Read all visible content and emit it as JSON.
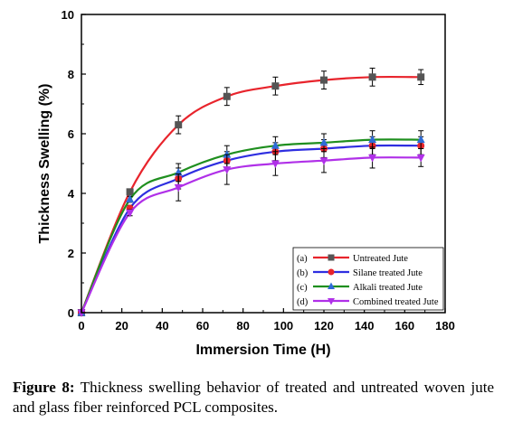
{
  "chart_data": {
    "type": "line",
    "xlabel": "Immersion Time (H)",
    "ylabel": "Thickness Swelling (%)",
    "xlim": [
      0,
      180
    ],
    "ylim": [
      0,
      10
    ],
    "xticks": [
      "0",
      "20",
      "40",
      "60",
      "80",
      "100",
      "120",
      "140",
      "160",
      "180"
    ],
    "yticks": [
      "0",
      "2",
      "4",
      "6",
      "8",
      "10"
    ],
    "grid": false,
    "legend_position": "bottom-right",
    "x": [
      0,
      24,
      48,
      72,
      96,
      120,
      144,
      168
    ],
    "series": [
      {
        "name": "Untreated Jute",
        "tag": "(a)",
        "color": "#e8242c",
        "marker": "square",
        "marker_color": "#555555",
        "values": [
          0,
          4.05,
          6.3,
          7.25,
          7.6,
          7.8,
          7.9,
          7.9
        ],
        "errors": [
          0,
          0.1,
          0.3,
          0.3,
          0.3,
          0.3,
          0.3,
          0.25
        ]
      },
      {
        "name": "Silane treated Jute",
        "tag": "(b)",
        "color": "#2e2ee0",
        "marker": "circle",
        "marker_color": "#e8242c",
        "values": [
          0,
          3.5,
          4.5,
          5.1,
          5.4,
          5.5,
          5.6,
          5.6
        ],
        "errors": [
          0,
          0.1,
          0.35,
          0.3,
          0.3,
          0.3,
          0.3,
          0.3
        ]
      },
      {
        "name": "Alkali treated Jute",
        "tag": "(c)",
        "color": "#1f8f1f",
        "marker": "triangle-up",
        "marker_color": "#2e6bd6",
        "values": [
          0,
          3.8,
          4.7,
          5.3,
          5.6,
          5.7,
          5.8,
          5.8
        ],
        "errors": [
          0,
          0.1,
          0.3,
          0.3,
          0.3,
          0.3,
          0.3,
          0.3
        ]
      },
      {
        "name": "Combined treated Jute",
        "tag": "(d)",
        "color": "#b030e8",
        "marker": "triangle-down",
        "marker_color": "#b030e8",
        "values": [
          0,
          3.35,
          4.2,
          4.8,
          5.0,
          5.1,
          5.2,
          5.2
        ],
        "errors": [
          0,
          0.1,
          0.45,
          0.5,
          0.4,
          0.4,
          0.35,
          0.3
        ]
      }
    ]
  },
  "caption": {
    "label": "Figure 8:",
    "text": " Thickness swelling behavior of treated and untreated woven jute and glass fiber reinforced PCL composites."
  }
}
